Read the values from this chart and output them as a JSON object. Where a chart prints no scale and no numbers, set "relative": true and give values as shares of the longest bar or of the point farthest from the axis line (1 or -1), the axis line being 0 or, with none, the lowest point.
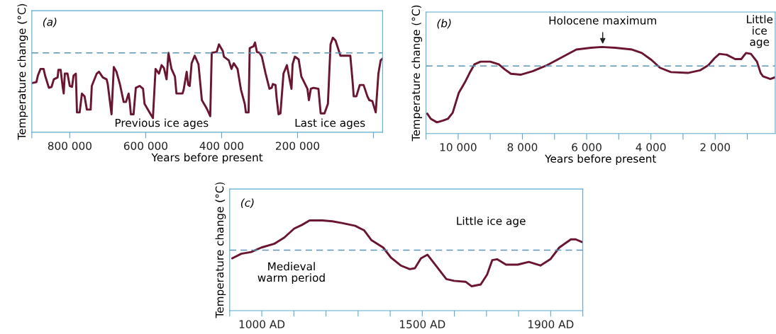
{
  "chart_data": [
    {
      "type": "line",
      "relative": true,
      "xlabel": "Years before present",
      "ylabel": "Temperature change (°C)",
      "xlim": [
        900000,
        -24000
      ],
      "xticks": [
        {
          "value": 900000,
          "label": null
        },
        {
          "value": 800000,
          "label": "800 000"
        },
        {
          "value": 600000,
          "label": "600 000"
        },
        {
          "value": 400000,
          "label": "400 000"
        },
        {
          "value": 200000,
          "label": "200 000"
        },
        {
          "value": 0,
          "label": null
        }
      ],
      "x": [
        900000,
        888000,
        884000,
        877000,
        869000,
        865000,
        855000,
        848000,
        842000,
        832000,
        830000,
        824000,
        819000,
        816000,
        813000,
        806000,
        800000,
        794000,
        790000,
        784000,
        781000,
        774000,
        768000,
        761000,
        755000,
        745000,
        742000,
        729000,
        723000,
        713000,
        703000,
        700000,
        690000,
        684000,
        677000,
        668000,
        658000,
        652000,
        645000,
        642000,
        639000,
        632000,
        626000,
        616000,
        607000,
        603000,
        587000,
        581000,
        574000,
        565000,
        558000,
        552000,
        545000,
        540000,
        532000,
        523000,
        519000,
        503000,
        500000,
        492000,
        488000,
        484000,
        479000,
        471000,
        461000,
        452000,
        439000,
        430000,
        426000,
        413000,
        407000,
        397000,
        394000,
        381000,
        374000,
        368000,
        358000,
        349000,
        339000,
        336000,
        329000,
        326000,
        316000,
        312000,
        307000,
        300000,
        294000,
        284000,
        274000,
        268000,
        265000,
        258000,
        255000,
        250000,
        245000,
        237000,
        228000,
        220000,
        216000,
        213000,
        207000,
        197000,
        190000,
        174000,
        170000,
        165000,
        158000,
        145000,
        139000,
        129000,
        120000,
        113000,
        107000,
        100000,
        87000,
        61000,
        55000,
        52000,
        45000,
        36000,
        26000,
        16000,
        11000,
        3000,
        -6000,
        -13000,
        -19000,
        -24000
      ],
      "series": [
        {
          "color": "#6b1630",
          "values": [
            0.52,
            0.53,
            0.6,
            0.67,
            0.67,
            0.6,
            0.47,
            0.48,
            0.56,
            0.58,
            0.66,
            0.66,
            0.49,
            0.41,
            0.62,
            0.62,
            0.49,
            0.48,
            0.6,
            0.62,
            0.21,
            0.21,
            0.41,
            0.38,
            0.24,
            0.24,
            0.49,
            0.62,
            0.64,
            0.58,
            0.56,
            0.51,
            0.19,
            0.69,
            0.64,
            0.51,
            0.32,
            0.32,
            0.41,
            0.32,
            0.19,
            0.19,
            0.47,
            0.49,
            0.46,
            0.3,
            0.19,
            0.15,
            0.67,
            0.62,
            0.71,
            0.68,
            0.56,
            0.84,
            0.67,
            0.59,
            0.41,
            0.41,
            0.45,
            0.64,
            0.5,
            0.49,
            0.73,
            0.81,
            0.72,
            0.34,
            0.25,
            0.17,
            0.84,
            0.85,
            0.93,
            0.86,
            0.8,
            0.76,
            0.67,
            0.73,
            0.67,
            0.45,
            0.3,
            0.21,
            0.21,
            0.89,
            0.91,
            0.95,
            0.85,
            0.84,
            0.8,
            0.62,
            0.46,
            0.47,
            0.51,
            0.5,
            0.36,
            0.19,
            0.2,
            0.62,
            0.71,
            0.54,
            0.46,
            0.72,
            0.8,
            0.77,
            0.59,
            0.46,
            0.34,
            0.46,
            0.47,
            0.46,
            0.2,
            0.2,
            0.3,
            0.93,
            1.0,
            0.97,
            0.81,
            0.81,
            0.54,
            0.38,
            0.38,
            0.5,
            0.5,
            0.38,
            0.34,
            0.33,
            0.21,
            0.62,
            0.76,
            0.78
          ]
        }
      ],
      "ref_lines": [
        {
          "axis": "y",
          "value": 0.84,
          "color": "#5a95b8",
          "line_style": "dashed"
        }
      ],
      "annotations": [
        "(a)",
        "Previous ice ages",
        "Last ice ages"
      ]
    },
    {
      "type": "line",
      "relative": true,
      "xlabel": "Years before present",
      "ylabel": "Temperature change (°C)",
      "xlim": [
        11000,
        130
      ],
      "xticks": [
        {
          "value": 11000,
          "label": null
        },
        {
          "value": 10000,
          "label": "10 000"
        },
        {
          "value": 9000,
          "label": null
        },
        {
          "value": 8000,
          "label": "8 000"
        },
        {
          "value": 7000,
          "label": null
        },
        {
          "value": 6000,
          "label": "6 000"
        },
        {
          "value": 5000,
          "label": null
        },
        {
          "value": 4000,
          "label": "4 000"
        },
        {
          "value": 3000,
          "label": null
        },
        {
          "value": 2000,
          "label": "2 000"
        },
        {
          "value": 1000,
          "label": null
        }
      ],
      "x": [
        10962,
        10849,
        10660,
        10472,
        10321,
        10170,
        9981,
        9792,
        9642,
        9491,
        9302,
        9000,
        8736,
        8547,
        8358,
        8057,
        7679,
        7226,
        6774,
        6321,
        5868,
        5528,
        5113,
        4585,
        4283,
        3981,
        3717,
        3377,
        2849,
        2472,
        2208,
        2019,
        1868,
        1642,
        1377,
        1189,
        1038,
        887,
        698,
        585,
        509,
        283,
        130
      ],
      "series": [
        {
          "color": "#6b1630",
          "values": [
            0.23,
            0.17,
            0.13,
            0.15,
            0.17,
            0.24,
            0.47,
            0.59,
            0.7,
            0.8,
            0.83,
            0.83,
            0.8,
            0.74,
            0.69,
            0.68,
            0.72,
            0.79,
            0.88,
            0.97,
            0.99,
            1.0,
            0.99,
            0.97,
            0.93,
            0.85,
            0.76,
            0.71,
            0.7,
            0.73,
            0.79,
            0.87,
            0.92,
            0.91,
            0.86,
            0.86,
            0.93,
            0.92,
            0.83,
            0.7,
            0.66,
            0.63,
            0.65
          ]
        }
      ],
      "ref_lines": [
        {
          "axis": "y",
          "value": 0.78,
          "color": "#5a95b8",
          "line_style": "dashed"
        }
      ],
      "annotations": [
        "(b)",
        {
          "text": "Holocene maximum",
          "x": 5500,
          "y": 1.0
        },
        "Little\nice\nage"
      ]
    },
    {
      "type": "line",
      "relative": true,
      "ylabel": "Temperature change (°C)",
      "xlim": [
        900,
        2000
      ],
      "xticks": [
        {
          "value": 900,
          "label": null
        },
        {
          "value": 1000,
          "label": "1000 AD"
        },
        {
          "value": 1100,
          "label": null
        },
        {
          "value": 1200,
          "label": null
        },
        {
          "value": 1300,
          "label": null
        },
        {
          "value": 1400,
          "label": null
        },
        {
          "value": 1500,
          "label": "1500 AD"
        },
        {
          "value": 1600,
          "label": null
        },
        {
          "value": 1700,
          "label": null
        },
        {
          "value": 1800,
          "label": null
        },
        {
          "value": 1900,
          "label": "1900 AD"
        },
        {
          "value": 2000,
          "label": null
        }
      ],
      "x": [
        908,
        936,
        967,
        999,
        1038,
        1070,
        1101,
        1125,
        1149,
        1188,
        1220,
        1252,
        1291,
        1319,
        1342,
        1378,
        1402,
        1433,
        1461,
        1477,
        1496,
        1516,
        1540,
        1575,
        1599,
        1635,
        1654,
        1682,
        1702,
        1718,
        1733,
        1761,
        1797,
        1832,
        1868,
        1899,
        1927,
        1963,
        1978,
        1998
      ],
      "series": [
        {
          "color": "#6b1630",
          "values": [
            0.58,
            0.63,
            0.65,
            0.7,
            0.74,
            0.81,
            0.91,
            0.95,
            1.0,
            1.0,
            0.99,
            0.97,
            0.94,
            0.89,
            0.78,
            0.7,
            0.59,
            0.5,
            0.46,
            0.47,
            0.58,
            0.62,
            0.51,
            0.35,
            0.33,
            0.32,
            0.27,
            0.29,
            0.4,
            0.56,
            0.57,
            0.51,
            0.51,
            0.54,
            0.5,
            0.57,
            0.7,
            0.79,
            0.79,
            0.76
          ]
        }
      ],
      "ref_lines": [
        {
          "axis": "y",
          "value": 0.67,
          "color": "#5a95b8",
          "line_style": "dashed"
        }
      ],
      "annotations": [
        "(c)",
        "Little ice age",
        "Medieval\nwarm period"
      ]
    }
  ]
}
